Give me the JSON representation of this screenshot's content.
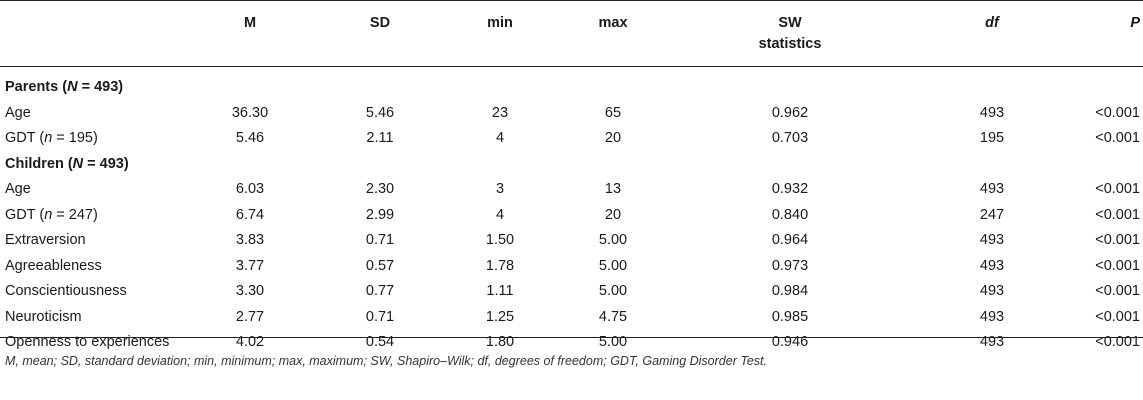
{
  "table": {
    "headers": {
      "m": "M",
      "sd": "SD",
      "min": "min",
      "max": "max",
      "sw_line1": "SW",
      "sw_line2": "statistics",
      "df": "df",
      "p": "P"
    },
    "rows": [
      {
        "type": "section",
        "label": "Parents (N = 493)"
      },
      {
        "type": "data",
        "label": "Age",
        "m": "36.30",
        "sd": "5.46",
        "min": "23",
        "max": "65",
        "sw": "0.962",
        "df": "493",
        "p": "<0.001"
      },
      {
        "type": "data",
        "label": "GDT (n = 195)",
        "m": "5.46",
        "sd": "2.11",
        "min": "4",
        "max": "20",
        "sw": "0.703",
        "df": "195",
        "p": "<0.001"
      },
      {
        "type": "section",
        "label": "Children (N = 493)"
      },
      {
        "type": "data",
        "label": "Age",
        "m": "6.03",
        "sd": "2.30",
        "min": "3",
        "max": "13",
        "sw": "0.932",
        "df": "493",
        "p": "<0.001"
      },
      {
        "type": "data",
        "label": "GDT (n = 247)",
        "m": "6.74",
        "sd": "2.99",
        "min": "4",
        "max": "20",
        "sw": "0.840",
        "df": "247",
        "p": "<0.001"
      },
      {
        "type": "data",
        "label": "Extraversion",
        "m": "3.83",
        "sd": "0.71",
        "min": "1.50",
        "max": "5.00",
        "sw": "0.964",
        "df": "493",
        "p": "<0.001"
      },
      {
        "type": "data",
        "label": "Agreeableness",
        "m": "3.77",
        "sd": "0.57",
        "min": "1.78",
        "max": "5.00",
        "sw": "0.973",
        "df": "493",
        "p": "<0.001"
      },
      {
        "type": "data",
        "label": "Conscientiousness",
        "m": "3.30",
        "sd": "0.77",
        "min": "1.11",
        "max": "5.00",
        "sw": "0.984",
        "df": "493",
        "p": "<0.001"
      },
      {
        "type": "data",
        "label": "Neuroticism",
        "m": "2.77",
        "sd": "0.71",
        "min": "1.25",
        "max": "4.75",
        "sw": "0.985",
        "df": "493",
        "p": "<0.001"
      },
      {
        "type": "data",
        "label": "Openness to experiences",
        "m": "4.02",
        "sd": "0.54",
        "min": "1.80",
        "max": "5.00",
        "sw": "0.946",
        "df": "493",
        "p": "<0.001"
      }
    ]
  },
  "footnote": "M, mean; SD, standard deviation; min, minimum; max, maximum; SW, Shapiro–Wilk; df, degrees of freedom; GDT, Gaming Disorder Test."
}
